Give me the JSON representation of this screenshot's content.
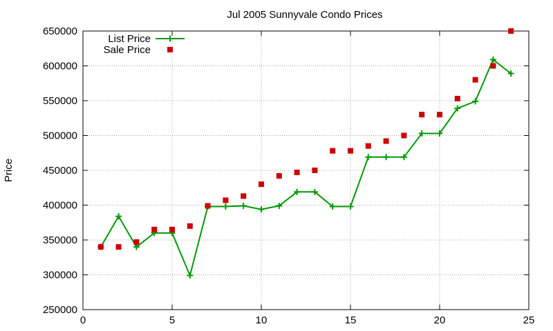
{
  "chart_data": {
    "type": "line",
    "title": "Jul 2005 Sunnyvale Condo Prices",
    "xlabel": "",
    "ylabel": "Price",
    "xlim": [
      0,
      25
    ],
    "ylim": [
      250000,
      650000
    ],
    "x_ticks": [
      0,
      5,
      10,
      15,
      20,
      25
    ],
    "y_ticks": [
      250000,
      300000,
      350000,
      400000,
      450000,
      500000,
      550000,
      600000,
      650000
    ],
    "grid": true,
    "legend_position": "top-left",
    "series": [
      {
        "name": "List Price",
        "style": "line-with-plus",
        "color": "#009900",
        "x": [
          1,
          2,
          3,
          4,
          5,
          6,
          7,
          8,
          9,
          10,
          11,
          12,
          13,
          14,
          15,
          16,
          17,
          18,
          19,
          20,
          21,
          22,
          23,
          24
        ],
        "values": [
          340000,
          384000,
          340000,
          360000,
          360000,
          299000,
          398000,
          398000,
          399000,
          394000,
          399000,
          419000,
          419000,
          398000,
          398000,
          469000,
          469000,
          469000,
          503000,
          503000,
          539000,
          549000,
          609000,
          589000
        ]
      },
      {
        "name": "Sale Price",
        "style": "square-markers",
        "color": "#cc0000",
        "x": [
          1,
          2,
          3,
          4,
          5,
          6,
          7,
          8,
          9,
          10,
          11,
          12,
          13,
          14,
          15,
          16,
          17,
          18,
          19,
          20,
          21,
          22,
          23,
          24
        ],
        "values": [
          340000,
          340000,
          347000,
          365000,
          365000,
          370000,
          399000,
          407000,
          413000,
          430000,
          442000,
          447000,
          450000,
          478000,
          478000,
          485000,
          492000,
          500000,
          530000,
          530000,
          553000,
          580000,
          600000,
          650000
        ]
      }
    ]
  }
}
